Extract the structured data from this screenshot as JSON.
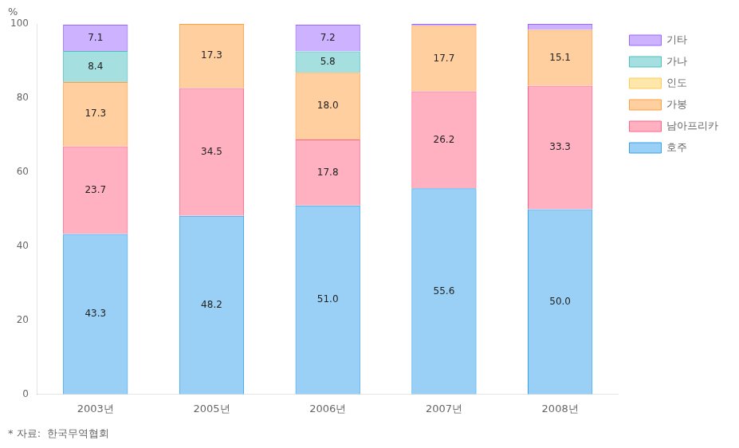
{
  "chart_data": {
    "type": "bar",
    "stacked": true,
    "categories": [
      "2003년",
      "2005년",
      "2006년",
      "2007년",
      "2008년"
    ],
    "series": [
      {
        "name": "호주",
        "values": [
          43.3,
          48.2,
          51.0,
          55.6,
          50.0
        ],
        "value_labels": [
          "43.3",
          "48.2",
          "51.0",
          "55.6",
          "50.0"
        ]
      },
      {
        "name": "남아프리카",
        "values": [
          23.7,
          34.5,
          17.8,
          26.2,
          33.3
        ],
        "value_labels": [
          "23.7",
          "34.5",
          "17.8",
          "26.2",
          "33.3"
        ]
      },
      {
        "name": "가봉",
        "values": [
          17.3,
          17.3,
          18.0,
          17.7,
          15.1
        ],
        "value_labels": [
          "17.3",
          "17.3",
          "18.0",
          "17.7",
          "15.1"
        ]
      },
      {
        "name": "인도",
        "values": [
          0.0,
          0.0,
          0.0,
          0.0,
          0.0
        ],
        "value_labels": [
          null,
          null,
          null,
          null,
          null
        ]
      },
      {
        "name": "가나",
        "values": [
          8.4,
          0.0,
          5.8,
          0.0,
          0.0
        ],
        "value_labels": [
          "8.4",
          null,
          "5.8",
          null,
          null
        ]
      },
      {
        "name": "기타",
        "values": [
          7.1,
          0.0,
          7.2,
          0.5,
          1.6
        ],
        "value_labels": [
          "7.1",
          null,
          "7.2",
          null,
          null
        ]
      }
    ],
    "ylabel": "%",
    "ylim": [
      0,
      100
    ],
    "yticks": [
      0,
      20,
      40,
      60,
      80,
      100
    ],
    "grid": false,
    "legend": "right",
    "data_labels": true,
    "footnote": "* 자료:  한국무역협회"
  }
}
